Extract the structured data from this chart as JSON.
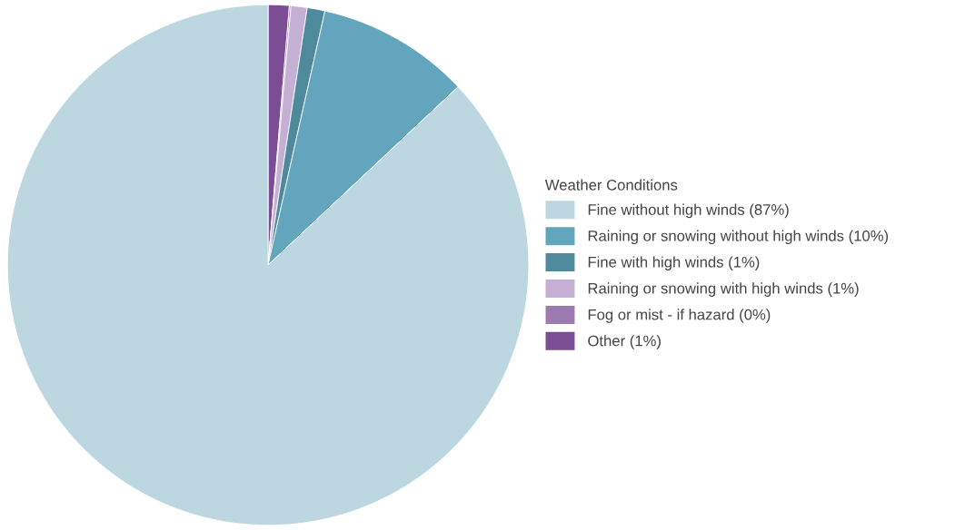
{
  "chart_data": {
    "type": "pie",
    "legend_title": "Weather Conditions",
    "legend": "right",
    "categories": [
      "Fine without high winds (87%)",
      "Raining or snowing without high winds (10%)",
      "Fine with high winds (1%)",
      "Raining or snowing with high winds (1%)",
      "Fog or mist - if hazard (0%)",
      "Other (1%)"
    ],
    "values": [
      87.0,
      9.5,
      1.1,
      1.0,
      0.1,
      1.3
    ],
    "colors": [
      "#bdd7e0",
      "#62a5bd",
      "#4f8a9c",
      "#c4b0d4",
      "#9d7bb0",
      "#7a4d94"
    ]
  }
}
